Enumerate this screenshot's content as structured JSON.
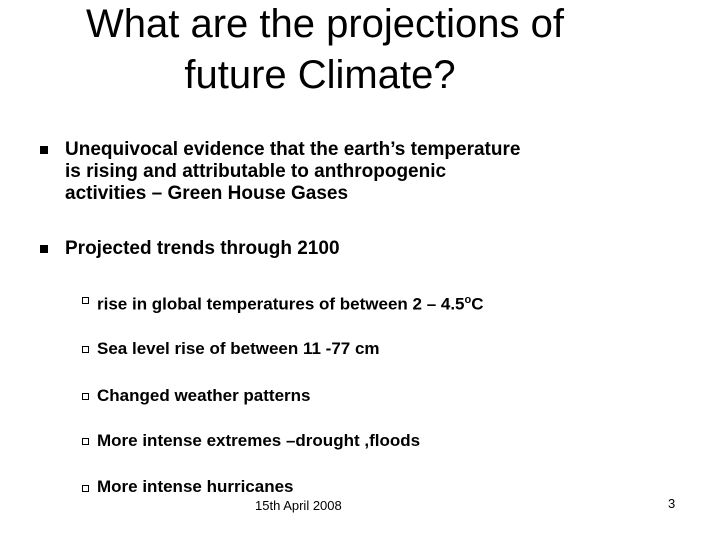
{
  "title": {
    "lines": [
      "What are the projections of",
      "future Climate?"
    ]
  },
  "bullets": [
    {
      "lines": [
        "Unequivocal evidence that the earth’s temperature",
        "is rising and attributable to anthropogenic",
        "activities – Green House Gases"
      ]
    },
    {
      "lines": [
        "Projected trends through 2100"
      ]
    }
  ],
  "sub_bullets": {
    "first": {
      "before": "rise in global temperatures of between 2 – 4.5",
      "superscript": "o",
      "after": "C"
    },
    "others": [
      "Sea level rise of between 11 -77 cm",
      "Changed weather patterns",
      "More intense extremes –drought ,floods",
      "More intense hurricanes"
    ]
  },
  "footer": {
    "date": "15th April 2008",
    "page": "3"
  }
}
